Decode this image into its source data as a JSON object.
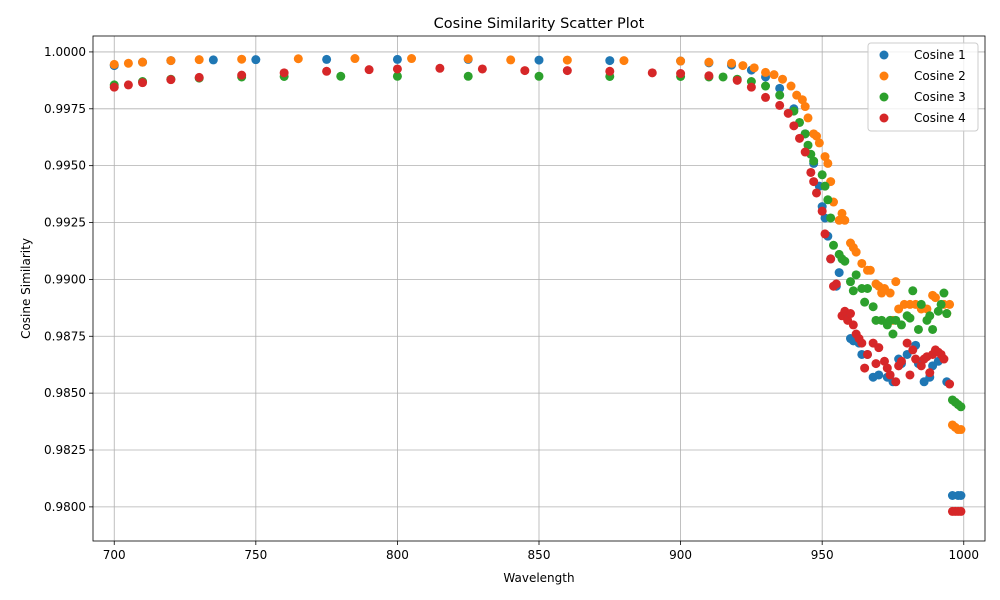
{
  "chart_data": {
    "type": "scatter",
    "title": "Cosine Similarity Scatter Plot",
    "xlabel": "Wavelength",
    "ylabel": "Cosine Similarity",
    "xlim": [
      692.5,
      1007.5
    ],
    "ylim": [
      0.9785,
      1.0007
    ],
    "xticks": [
      700,
      750,
      800,
      850,
      900,
      950,
      1000
    ],
    "yticks": [
      0.98,
      0.9825,
      0.985,
      0.9875,
      0.99,
      0.9925,
      0.995,
      0.9975,
      1.0
    ],
    "xtick_labels": [
      "700",
      "750",
      "800",
      "850",
      "900",
      "950",
      "1000"
    ],
    "ytick_labels": [
      "0.9800",
      "0.9825",
      "0.9850",
      "0.9875",
      "0.9900",
      "0.9925",
      "0.9950",
      "0.9975",
      "1.0000"
    ],
    "grid": true,
    "legend_position": "top-right",
    "series": [
      {
        "name": "Cosine 1",
        "color": "#1f77b4",
        "points": [
          [
            700,
            0.9994
          ],
          [
            710,
            0.99955
          ],
          [
            720,
            0.99962
          ],
          [
            735,
            0.99965
          ],
          [
            750,
            0.99966
          ],
          [
            775,
            0.99967
          ],
          [
            800,
            0.99967
          ],
          [
            825,
            0.99967
          ],
          [
            850,
            0.99964
          ],
          [
            875,
            0.99962
          ],
          [
            900,
            0.9996
          ],
          [
            910,
            0.99952
          ],
          [
            918,
            0.99942
          ],
          [
            925,
            0.9992
          ],
          [
            930,
            0.9989
          ],
          [
            935,
            0.9984
          ],
          [
            940,
            0.9975
          ],
          [
            944,
            0.9964
          ],
          [
            947,
            0.9951
          ],
          [
            949,
            0.9941
          ],
          [
            950,
            0.9932
          ],
          [
            951,
            0.9927
          ],
          [
            952,
            0.9919
          ],
          [
            953,
            0.9909
          ],
          [
            955,
            0.9897
          ],
          [
            956,
            0.9903
          ],
          [
            958,
            0.9885
          ],
          [
            960,
            0.9874
          ],
          [
            961,
            0.9873
          ],
          [
            963,
            0.9872
          ],
          [
            964,
            0.9867
          ],
          [
            966,
            0.9867
          ],
          [
            968,
            0.9857
          ],
          [
            970,
            0.9858
          ],
          [
            973,
            0.9857
          ],
          [
            975,
            0.9855
          ],
          [
            977,
            0.9865
          ],
          [
            978,
            0.9863
          ],
          [
            980,
            0.9867
          ],
          [
            983,
            0.9871
          ],
          [
            984,
            0.9863
          ],
          [
            986,
            0.9855
          ],
          [
            988,
            0.9857
          ],
          [
            989,
            0.9862
          ],
          [
            991,
            0.9864
          ],
          [
            994,
            0.9855
          ],
          [
            996,
            0.9805
          ],
          [
            998,
            0.9805
          ],
          [
            999,
            0.9805
          ]
        ]
      },
      {
        "name": "Cosine 2",
        "color": "#ff7f0e",
        "points": [
          [
            700,
            0.99945
          ],
          [
            705,
            0.9995
          ],
          [
            710,
            0.99955
          ],
          [
            720,
            0.99962
          ],
          [
            730,
            0.99966
          ],
          [
            745,
            0.99968
          ],
          [
            765,
            0.9997
          ],
          [
            785,
            0.99971
          ],
          [
            805,
            0.99971
          ],
          [
            825,
            0.9997
          ],
          [
            840,
            0.99965
          ],
          [
            860,
            0.99964
          ],
          [
            880,
            0.99962
          ],
          [
            900,
            0.9996
          ],
          [
            910,
            0.99955
          ],
          [
            918,
            0.9995
          ],
          [
            922,
            0.9994
          ],
          [
            926,
            0.9993
          ],
          [
            930,
            0.9991
          ],
          [
            933,
            0.999
          ],
          [
            936,
            0.9988
          ],
          [
            939,
            0.9985
          ],
          [
            941,
            0.9981
          ],
          [
            943,
            0.9979
          ],
          [
            944,
            0.9976
          ],
          [
            945,
            0.9971
          ],
          [
            947,
            0.9964
          ],
          [
            948,
            0.9963
          ],
          [
            949,
            0.996
          ],
          [
            951,
            0.9954
          ],
          [
            952,
            0.9951
          ],
          [
            953,
            0.9943
          ],
          [
            954,
            0.9934
          ],
          [
            956,
            0.9926
          ],
          [
            957,
            0.9929
          ],
          [
            958,
            0.9926
          ],
          [
            960,
            0.9916
          ],
          [
            961,
            0.9914
          ],
          [
            962,
            0.9912
          ],
          [
            964,
            0.9907
          ],
          [
            966,
            0.9904
          ],
          [
            967,
            0.9904
          ],
          [
            969,
            0.9898
          ],
          [
            970,
            0.9897
          ],
          [
            971,
            0.9894
          ],
          [
            972,
            0.9896
          ],
          [
            974,
            0.9894
          ],
          [
            975,
            0.9882
          ],
          [
            976,
            0.9899
          ],
          [
            977,
            0.9887
          ],
          [
            979,
            0.9889
          ],
          [
            981,
            0.9889
          ],
          [
            983,
            0.9889
          ],
          [
            985,
            0.9887
          ],
          [
            987,
            0.9887
          ],
          [
            989,
            0.9893
          ],
          [
            990,
            0.9892
          ],
          [
            993,
            0.9889
          ],
          [
            994,
            0.9885
          ],
          [
            995,
            0.9889
          ],
          [
            996,
            0.9836
          ],
          [
            997,
            0.9835
          ],
          [
            998,
            0.9834
          ],
          [
            999,
            0.9834
          ]
        ]
      },
      {
        "name": "Cosine 3",
        "color": "#2ca02c",
        "points": [
          [
            700,
            0.99855
          ],
          [
            710,
            0.9987
          ],
          [
            720,
            0.9988
          ],
          [
            730,
            0.99885
          ],
          [
            745,
            0.9989
          ],
          [
            760,
            0.99892
          ],
          [
            780,
            0.99893
          ],
          [
            800,
            0.99893
          ],
          [
            825,
            0.99893
          ],
          [
            850,
            0.99893
          ],
          [
            875,
            0.99892
          ],
          [
            900,
            0.99892
          ],
          [
            910,
            0.9989
          ],
          [
            915,
            0.9989
          ],
          [
            920,
            0.9988
          ],
          [
            925,
            0.9987
          ],
          [
            930,
            0.9985
          ],
          [
            935,
            0.9981
          ],
          [
            940,
            0.9974
          ],
          [
            942,
            0.9969
          ],
          [
            944,
            0.9964
          ],
          [
            945,
            0.9959
          ],
          [
            946,
            0.9955
          ],
          [
            947,
            0.9952
          ],
          [
            950,
            0.9946
          ],
          [
            951,
            0.9941
          ],
          [
            952,
            0.9935
          ],
          [
            953,
            0.9927
          ],
          [
            954,
            0.9915
          ],
          [
            956,
            0.9911
          ],
          [
            957,
            0.9909
          ],
          [
            958,
            0.9908
          ],
          [
            960,
            0.9899
          ],
          [
            961,
            0.9895
          ],
          [
            962,
            0.9902
          ],
          [
            964,
            0.9896
          ],
          [
            965,
            0.989
          ],
          [
            966,
            0.9896
          ],
          [
            968,
            0.9888
          ],
          [
            969,
            0.9882
          ],
          [
            971,
            0.9882
          ],
          [
            973,
            0.988
          ],
          [
            974,
            0.9882
          ],
          [
            975,
            0.9876
          ],
          [
            976,
            0.9882
          ],
          [
            978,
            0.988
          ],
          [
            980,
            0.9884
          ],
          [
            981,
            0.9883
          ],
          [
            982,
            0.9895
          ],
          [
            984,
            0.9878
          ],
          [
            985,
            0.9889
          ],
          [
            987,
            0.9882
          ],
          [
            988,
            0.9884
          ],
          [
            989,
            0.9878
          ],
          [
            991,
            0.9886
          ],
          [
            992,
            0.9889
          ],
          [
            993,
            0.9894
          ],
          [
            994,
            0.9885
          ],
          [
            996,
            0.9847
          ],
          [
            997,
            0.9846
          ],
          [
            998,
            0.9845
          ],
          [
            999,
            0.9844
          ]
        ]
      },
      {
        "name": "Cosine 4",
        "color": "#d62728",
        "points": [
          [
            700,
            0.99845
          ],
          [
            705,
            0.99855
          ],
          [
            710,
            0.99865
          ],
          [
            720,
            0.99878
          ],
          [
            730,
            0.99888
          ],
          [
            745,
            0.99898
          ],
          [
            760,
            0.99908
          ],
          [
            775,
            0.99915
          ],
          [
            790,
            0.99922
          ],
          [
            800,
            0.99925
          ],
          [
            815,
            0.99928
          ],
          [
            830,
            0.99925
          ],
          [
            845,
            0.99918
          ],
          [
            860,
            0.99918
          ],
          [
            875,
            0.99915
          ],
          [
            890,
            0.99908
          ],
          [
            900,
            0.99905
          ],
          [
            910,
            0.99895
          ],
          [
            920,
            0.99875
          ],
          [
            925,
            0.99845
          ],
          [
            930,
            0.998
          ],
          [
            935,
            0.99765
          ],
          [
            938,
            0.9973
          ],
          [
            940,
            0.99675
          ],
          [
            942,
            0.9962
          ],
          [
            944,
            0.9956
          ],
          [
            946,
            0.9947
          ],
          [
            947,
            0.9943
          ],
          [
            948,
            0.9938
          ],
          [
            950,
            0.993
          ],
          [
            951,
            0.992
          ],
          [
            953,
            0.9909
          ],
          [
            954,
            0.9897
          ],
          [
            955,
            0.9898
          ],
          [
            957,
            0.9884
          ],
          [
            958,
            0.9886
          ],
          [
            959,
            0.9882
          ],
          [
            960,
            0.9885
          ],
          [
            961,
            0.988
          ],
          [
            962,
            0.9876
          ],
          [
            963,
            0.9874
          ],
          [
            964,
            0.9872
          ],
          [
            965,
            0.9861
          ],
          [
            966,
            0.9867
          ],
          [
            968,
            0.9872
          ],
          [
            969,
            0.9863
          ],
          [
            970,
            0.987
          ],
          [
            972,
            0.9864
          ],
          [
            973,
            0.9861
          ],
          [
            974,
            0.9858
          ],
          [
            976,
            0.9855
          ],
          [
            977,
            0.9862
          ],
          [
            978,
            0.9864
          ],
          [
            980,
            0.9872
          ],
          [
            981,
            0.9858
          ],
          [
            982,
            0.9869
          ],
          [
            983,
            0.9865
          ],
          [
            985,
            0.9862
          ],
          [
            986,
            0.9865
          ],
          [
            987,
            0.9866
          ],
          [
            988,
            0.9859
          ],
          [
            989,
            0.9867
          ],
          [
            990,
            0.9869
          ],
          [
            991,
            0.9868
          ],
          [
            992,
            0.9867
          ],
          [
            993,
            0.9865
          ],
          [
            995,
            0.9854
          ],
          [
            996,
            0.9798
          ],
          [
            997,
            0.9798
          ],
          [
            998,
            0.9798
          ],
          [
            999,
            0.9798
          ]
        ]
      }
    ]
  }
}
